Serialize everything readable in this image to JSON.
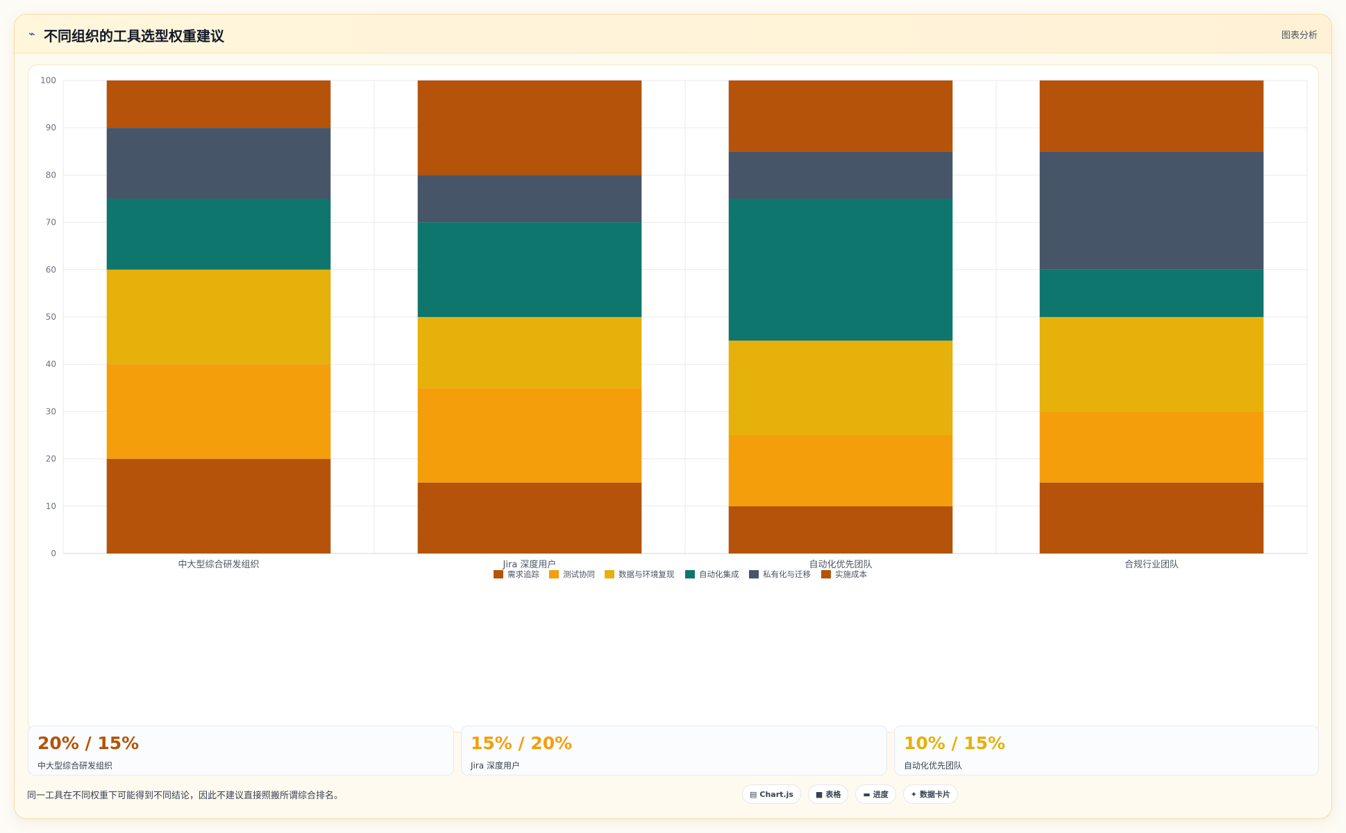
{
  "header": {
    "icon": "sparkline-icon",
    "title": "不同组织的工具选型权重建议",
    "action_label": "图表分析"
  },
  "chart_data": {
    "type": "bar",
    "stacked": true,
    "categories": [
      "中大型综合研发组织",
      "Jira 深度用户",
      "自动化优先团队",
      "合规行业团队"
    ],
    "series": [
      {
        "name": "需求追踪",
        "color": "#b45309",
        "values": [
          20,
          15,
          10,
          15
        ]
      },
      {
        "name": "测试协同",
        "color": "#f59e0b",
        "values": [
          20,
          20,
          15,
          15
        ]
      },
      {
        "name": "数据与环境复现",
        "color": "#e5b10a",
        "values": [
          20,
          15,
          20,
          20
        ]
      },
      {
        "name": "自动化集成",
        "color": "#0f766e",
        "values": [
          15,
          20,
          30,
          10
        ]
      },
      {
        "name": "私有化与迁移",
        "color": "#475569",
        "values": [
          15,
          10,
          10,
          25
        ]
      },
      {
        "name": "实施成本",
        "color": "#b45309",
        "values": [
          10,
          20,
          15,
          15
        ]
      }
    ],
    "ylim": [
      0,
      100
    ],
    "yticks": [
      0,
      10,
      20,
      30,
      40,
      50,
      60,
      70,
      80,
      90,
      100
    ],
    "grid": true,
    "legend_position": "bottom"
  },
  "stats": [
    {
      "value": "20% / 15%",
      "label": "中大型综合研发组织",
      "color": "#b45309"
    },
    {
      "value": "15% / 20%",
      "label": "Jira 深度用户",
      "color": "#f59e0b"
    },
    {
      "value": "10% / 15%",
      "label": "自动化优先团队",
      "color": "#e5b10a"
    }
  ],
  "footer": {
    "note": "同一工具在不同权重下可能得到不同结论，因此不建议直接照搬所谓综合排名。",
    "tags": [
      {
        "icon": "chart-icon",
        "glyph": "▤",
        "label": "Chart.js"
      },
      {
        "icon": "table-icon",
        "glyph": "■",
        "label": "表格"
      },
      {
        "icon": "progress-icon",
        "glyph": "▬",
        "label": "进度"
      },
      {
        "icon": "data-card-icon",
        "glyph": "✦",
        "label": "数据卡片"
      }
    ]
  }
}
